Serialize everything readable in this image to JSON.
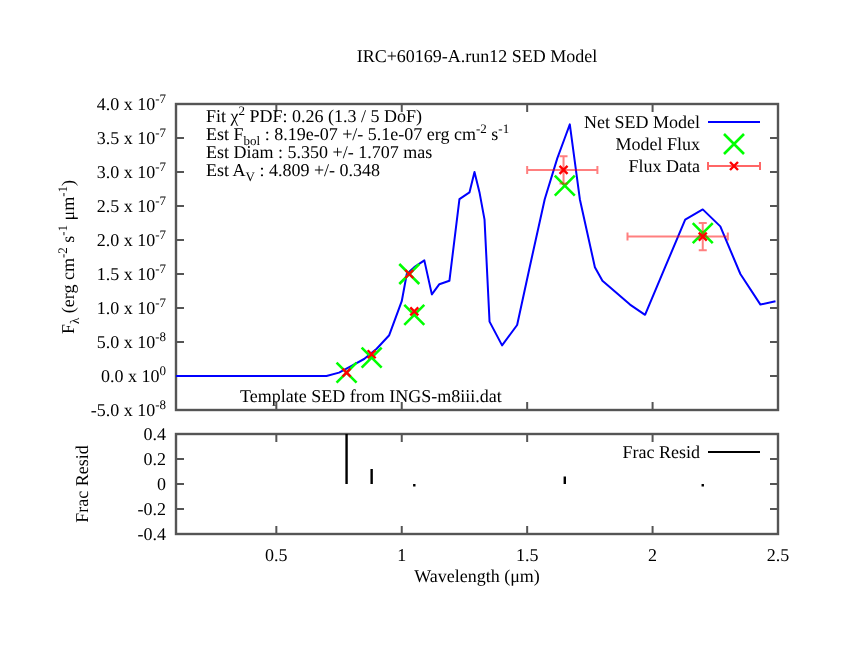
{
  "chart_data": [
    {
      "type": "line",
      "title": "IRC+60169-A.run12 SED Model",
      "ylabel": "F$_{λ}$ (erg cm$^{-2}$ s$^{-1}$ μm$^{-1}$)",
      "annotations": [
        "Fit χ$^{2}$ PDF: 0.26 (1.3 / 5 DoF)",
        "Est F$_{bol}$ : 8.19e-07 +/- 5.1e-07 erg cm$^{-2}$ s$^{-1}$",
        "Est Diam : 5.350 +/- 1.707 mas",
        "Est A$_{V}$ : 4.809 +/- 0.348",
        "Template SED from INGS-m8iii.dat"
      ],
      "xlim": [
        0.1,
        2.5
      ],
      "xticks": [
        0.5,
        1,
        1.5,
        2,
        2.5
      ],
      "ylim": [
        -5e-08,
        4e-07
      ],
      "yticks": [
        {
          "value": -5e-08,
          "label": "-5.0 x 10$^{-8}$"
        },
        {
          "value": 0,
          "label": "0.0 x 10$^{0}$"
        },
        {
          "value": 5e-08,
          "label": "5.0 x 10$^{-8}$"
        },
        {
          "value": 1e-07,
          "label": "1.0 x 10$^{-7}$"
        },
        {
          "value": 1.5e-07,
          "label": "1.5 x 10$^{-7}$"
        },
        {
          "value": 2e-07,
          "label": "2.0 x 10$^{-7}$"
        },
        {
          "value": 2.5e-07,
          "label": "2.5 x 10$^{-7}$"
        },
        {
          "value": 3e-07,
          "label": "3.0 x 10$^{-7}$"
        },
        {
          "value": 3.5e-07,
          "label": "3.5 x 10$^{-7}$"
        },
        {
          "value": 4e-07,
          "label": "4.0 x 10$^{-7}$"
        }
      ],
      "tick_labels": "y",
      "grid": false,
      "legend": "top right",
      "series": [
        {
          "name": "Net SED Model",
          "color": "#0000ff",
          "marker": "none",
          "line_style": "solid",
          "x": [
            0.1,
            0.4,
            0.7,
            0.75,
            0.8,
            0.85,
            0.9,
            0.95,
            1.0,
            1.02,
            1.05,
            1.09,
            1.12,
            1.15,
            1.19,
            1.23,
            1.27,
            1.29,
            1.31,
            1.33,
            1.35,
            1.4,
            1.46,
            1.51,
            1.57,
            1.62,
            1.65,
            1.67,
            1.71,
            1.77,
            1.8,
            1.91,
            1.97,
            2.05,
            2.13,
            2.2,
            2.27,
            2.35,
            2.43,
            2.49
          ],
          "values": [
            0,
            0,
            0,
            5e-09,
            1.5e-08,
            2.5e-08,
            4e-08,
            6e-08,
            1.1e-07,
            1.5e-07,
            1.6e-07,
            1.7e-07,
            1.2e-07,
            1.35e-07,
            1.4e-07,
            2.6e-07,
            2.7e-07,
            3e-07,
            2.7e-07,
            2.3e-07,
            8e-08,
            4.5e-08,
            7.5e-08,
            1.6e-07,
            2.6e-07,
            3.2e-07,
            3.5e-07,
            3.7e-07,
            2.6e-07,
            1.6e-07,
            1.4e-07,
            1.05e-07,
            9e-08,
            1.6e-07,
            2.3e-07,
            2.45e-07,
            2.2e-07,
            1.5e-07,
            1.05e-07,
            1.1e-07
          ]
        },
        {
          "type": "scatter",
          "name": "Model Flux",
          "color": "#00ff00",
          "marker": "cross",
          "x": [
            0.78,
            0.88,
            1.03,
            1.05,
            1.65,
            2.2
          ],
          "values": [
            5e-09,
            2.7e-08,
            1.5e-07,
            9e-08,
            2.8e-07,
            2.1e-07
          ]
        },
        {
          "type": "scatter",
          "name": "Flux Data",
          "color": "#ff0000",
          "marker": "cross",
          "x": [
            0.78,
            0.88,
            1.03,
            1.05,
            1.645,
            2.2
          ],
          "values": [
            5e-09,
            3.2e-08,
            1.5e-07,
            9.5e-08,
            3.03e-07,
            2.05e-07
          ],
          "errors": [
            null,
            null,
            null,
            null,
            2e-08,
            2e-08
          ],
          "xerrors": [
            null,
            null,
            null,
            null,
            [
              1.5,
              1.78
            ],
            [
              1.9,
              2.3
            ]
          ]
        }
      ]
    },
    {
      "type": "bar",
      "xlabel": "Wavelength (μm)",
      "ylabel": "Frac Resid",
      "xlim": [
        0.1,
        2.5
      ],
      "xticks": [
        0.5,
        1,
        1.5,
        2,
        2.5
      ],
      "ylim": [
        -0.4,
        0.4
      ],
      "yticks": [
        -0.4,
        -0.2,
        0,
        0.2,
        0.4
      ],
      "grid": false,
      "legend": "top right",
      "x": [
        0.78,
        0.88,
        1.05,
        1.65,
        2.2
      ],
      "series": [
        {
          "name": "Frac Resid",
          "color": "#000000",
          "values": [
            0.4,
            0.12,
            -0.02,
            0.06,
            -0.02
          ]
        }
      ]
    }
  ]
}
